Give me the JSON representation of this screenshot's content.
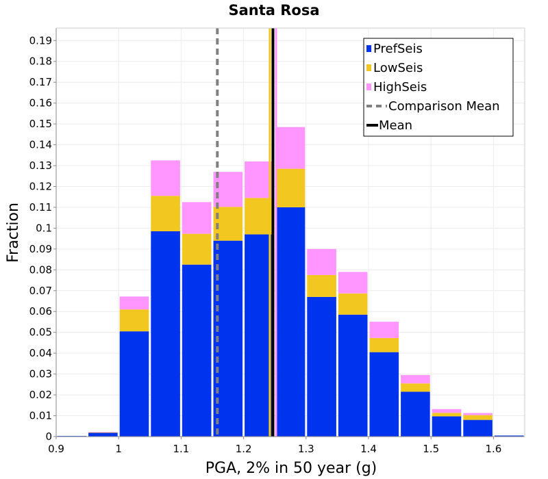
{
  "chart_data": {
    "type": "bar",
    "stacked": true,
    "title": "Santa Rosa",
    "xlabel": "PGA, 2% in 50 year (g)",
    "ylabel": "Fraction",
    "xlim": [
      0.9,
      1.65
    ],
    "ylim": [
      0,
      0.196
    ],
    "bin_width": 0.05,
    "x_ticks": [
      0.9,
      1.0,
      1.1,
      1.2,
      1.3,
      1.4,
      1.5,
      1.6
    ],
    "x_tick_labels": [
      "0.9",
      "1",
      "1.1",
      "1.2",
      "1.3",
      "1.4",
      "1.5",
      "1.6"
    ],
    "y_ticks": [
      0,
      0.01,
      0.02,
      0.03,
      0.04,
      0.05,
      0.06,
      0.07,
      0.08,
      0.09,
      0.1,
      0.11,
      0.12,
      0.13,
      0.14,
      0.15,
      0.16,
      0.17,
      0.18,
      0.19
    ],
    "y_tick_labels": [
      "0",
      "0.01",
      "0.02",
      "0.03",
      "0.04",
      "0.05",
      "0.06",
      "0.07",
      "0.08",
      "0.09",
      "0.1",
      "0.11",
      "0.12",
      "0.13",
      "0.14",
      "0.15",
      "0.16",
      "0.17",
      "0.18",
      "0.19"
    ],
    "bin_starts": [
      0.9,
      0.95,
      1.0,
      1.05,
      1.1,
      1.15,
      1.2,
      1.25,
      1.3,
      1.35,
      1.4,
      1.45,
      1.5,
      1.55,
      1.6
    ],
    "series": [
      {
        "name": "PrefSeis",
        "color": "#0033ee",
        "values": [
          0.0003,
          0.0018,
          0.0505,
          0.0985,
          0.0825,
          0.094,
          0.097,
          0.11,
          0.067,
          0.0585,
          0.0405,
          0.0215,
          0.0097,
          0.008,
          0.0005
        ]
      },
      {
        "name": "LowSeis",
        "color": "#f2c820",
        "values": [
          0.0,
          0.0002,
          0.0105,
          0.017,
          0.0148,
          0.0162,
          0.0175,
          0.0185,
          0.0105,
          0.0102,
          0.0068,
          0.004,
          0.0017,
          0.0023,
          0.0
        ]
      },
      {
        "name": "HighSeis",
        "color": "#ff96ff",
        "values": [
          0.0,
          0.0002,
          0.0062,
          0.017,
          0.0152,
          0.0168,
          0.0175,
          0.02,
          0.0125,
          0.0103,
          0.0078,
          0.004,
          0.0018,
          0.001,
          0.0
        ]
      }
    ],
    "vertical_lines": [
      {
        "name": "Comparison Mean",
        "x": 1.158,
        "color": "#808080",
        "style": "dashed"
      },
      {
        "name": "LowSeis Mean",
        "x": 1.242,
        "color": "#f2c820",
        "style": "solid"
      },
      {
        "name": "HighSeis Mean",
        "x": 1.252,
        "color": "#ff96ff",
        "style": "solid"
      },
      {
        "name": "Mean",
        "x": 1.247,
        "color": "#000000",
        "style": "solid"
      }
    ],
    "legend": {
      "position": "top-right",
      "entries": [
        {
          "label": "PrefSeis",
          "kind": "square",
          "color": "#0033ee"
        },
        {
          "label": "LowSeis",
          "kind": "square",
          "color": "#f2c820"
        },
        {
          "label": "HighSeis",
          "kind": "square",
          "color": "#ff96ff"
        },
        {
          "label": "Comparison Mean",
          "kind": "dash",
          "color": "#808080"
        },
        {
          "label": "Mean",
          "kind": "line",
          "color": "#000000"
        }
      ]
    },
    "grid": true
  }
}
